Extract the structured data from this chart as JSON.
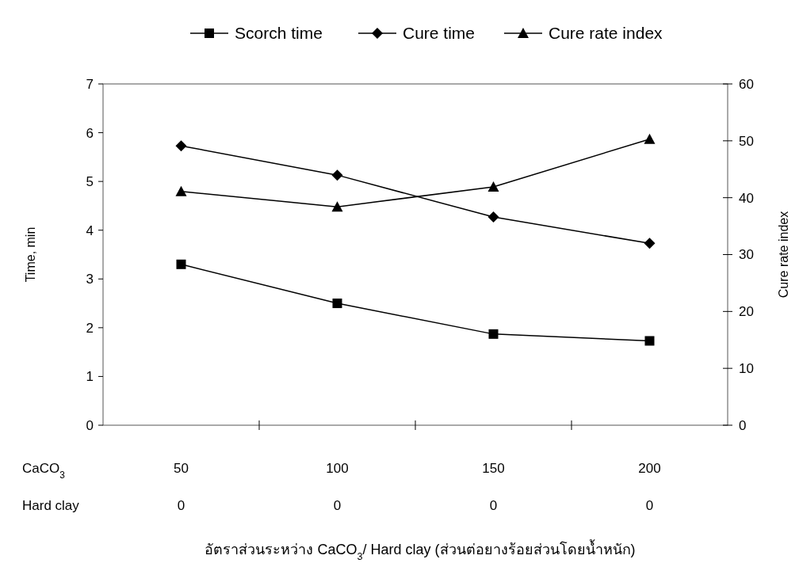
{
  "chart_data": {
    "type": "line",
    "xlabel": "อัตราส่วนระหว่าง CaCO$_{3}$/ Hard clay (ส่วนต่อยางร้อยส่วนโดยน้ำหนัก)",
    "ylabel": "Time, min",
    "y2label": "Cure rate index",
    "categories": [
      "50",
      "100",
      "150",
      "200"
    ],
    "annotations": [
      "CaCO$_{3}$",
      "Hard clay",
      "0",
      "0",
      "0",
      "0"
    ],
    "series": [
      {
        "name": "Scorch time",
        "color": "#000000",
        "marker": "square",
        "values": [
          3.3,
          2.5,
          1.87,
          1.73
        ]
      },
      {
        "name": "Cure time",
        "color": "#000000",
        "marker": "diamond",
        "values": [
          5.73,
          5.13,
          4.27,
          3.73
        ]
      },
      {
        "name": "Cure rate index",
        "color": "#000000",
        "marker": "triangle",
        "axis": "y2",
        "values": [
          41.1,
          38.4,
          41.9,
          50.3
        ]
      }
    ],
    "ylim": [
      0,
      7
    ],
    "yticks": [
      0,
      1,
      2,
      3,
      4,
      5,
      6,
      7
    ],
    "y2lim": [
      0,
      60
    ],
    "y2ticks": [
      0,
      10,
      20,
      30,
      40,
      50,
      60
    ],
    "legend": "top",
    "grid": false,
    "line_style": "solid"
  }
}
